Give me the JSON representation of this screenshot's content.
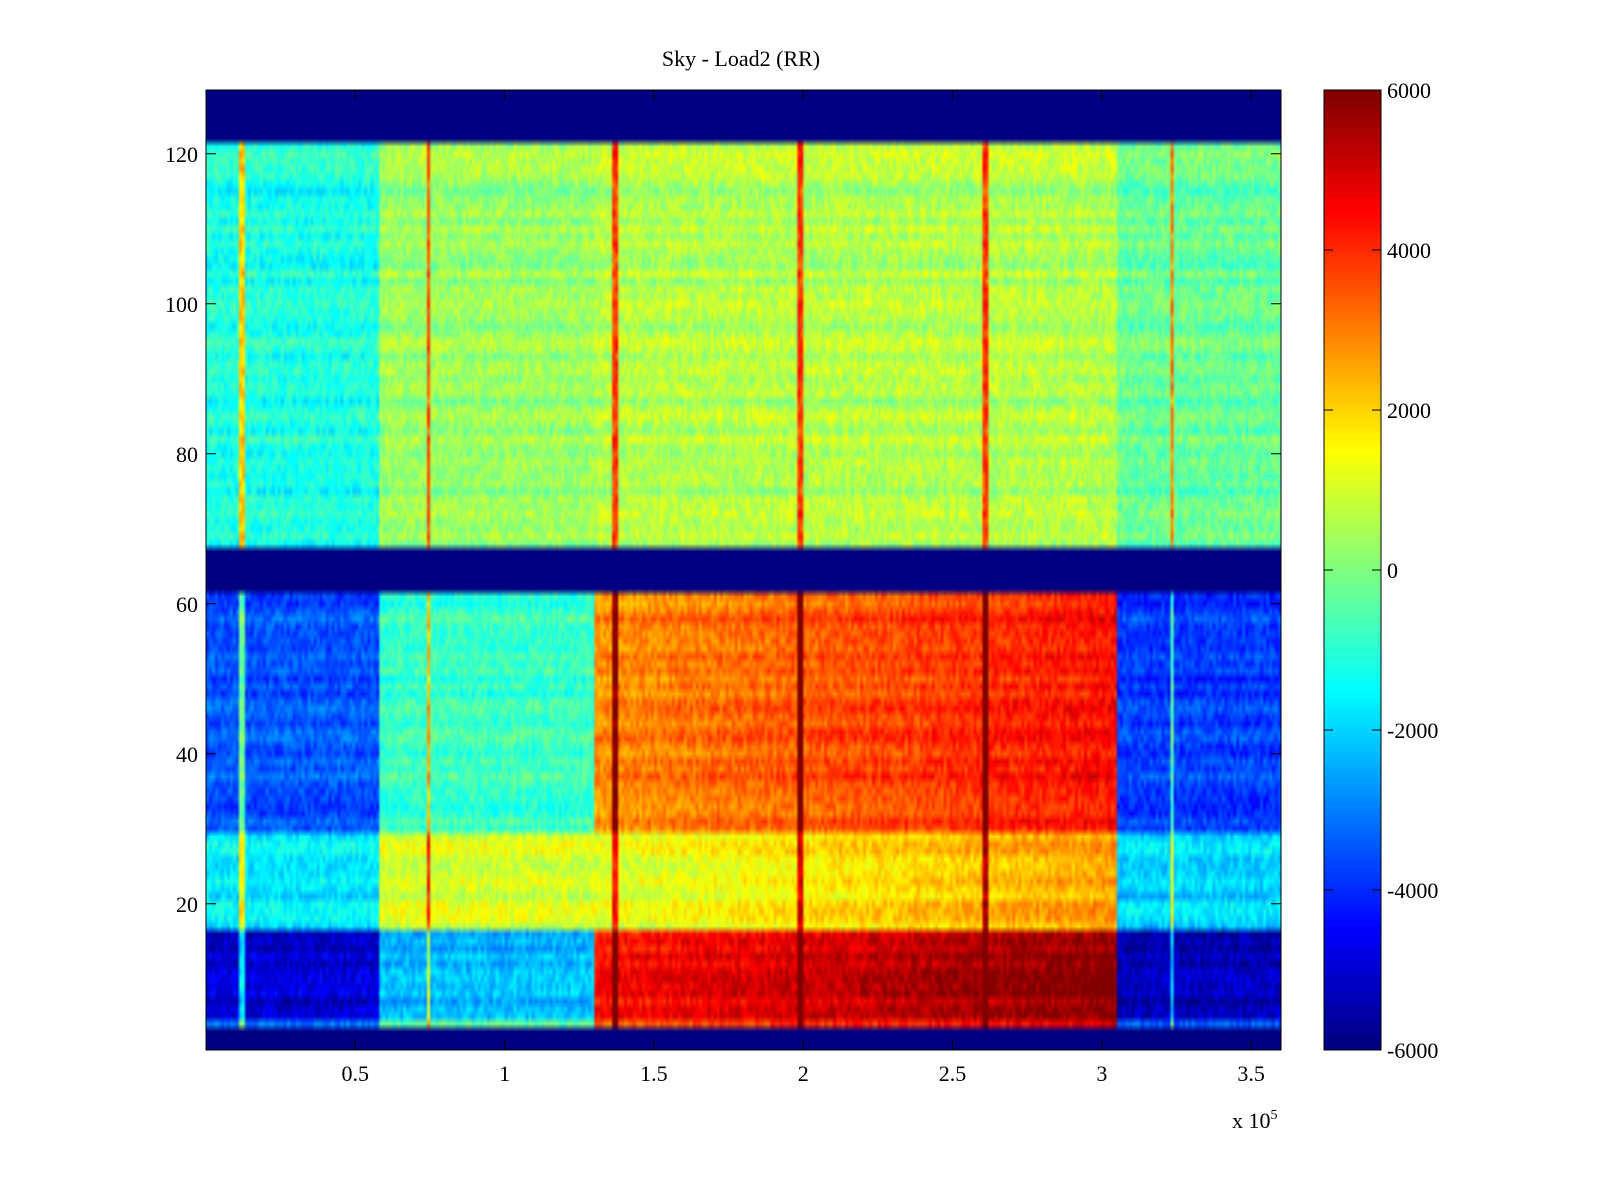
{
  "chart_data": {
    "type": "heatmap",
    "title": "Sky - Load2 (RR)",
    "xlabel": "",
    "ylabel": "",
    "x_multiplier_label": "x 10",
    "x_multiplier_exponent": "5",
    "xlim": [
      0,
      3.6
    ],
    "ylim": [
      0.5,
      128.5
    ],
    "x_ticks": [
      0.5,
      1,
      1.5,
      2,
      2.5,
      3,
      3.5
    ],
    "x_tick_labels": [
      "0.5",
      "1",
      "1.5",
      "2",
      "2.5",
      "3",
      "3.5"
    ],
    "y_ticks": [
      20,
      40,
      60,
      80,
      100,
      120
    ],
    "y_tick_labels": [
      "20",
      "40",
      "60",
      "80",
      "100",
      "120"
    ],
    "colorbar": {
      "colormap": "jet",
      "limits": [
        -6000,
        6000
      ],
      "ticks": [
        6000,
        4000,
        2000,
        0,
        -2000,
        -4000,
        -6000
      ],
      "tick_labels": [
        "6000",
        "4000",
        "2000",
        "0",
        "-2000",
        "-4000",
        "-6000"
      ]
    },
    "masked_rows": [
      [
        1,
        3
      ],
      [
        62,
        67
      ],
      [
        122,
        128
      ]
    ],
    "masked_value": -6000,
    "spike_columns_x": [
      0.12,
      0.745,
      1.37,
      1.99,
      2.61,
      3.235
    ],
    "segments": [
      {
        "x_range": [
          0,
          0.58
        ],
        "value_lower_band": -3500,
        "value_upper_band": -1200
      },
      {
        "x_range": [
          0.58,
          1.3
        ],
        "value_lower_band": -800,
        "value_upper_band": 300
      },
      {
        "x_range": [
          1.3,
          3.05
        ],
        "value_lower_band": 2800,
        "value_upper_band": 600
      },
      {
        "x_range": [
          3.05,
          3.6
        ],
        "value_lower_band": -3800,
        "value_upper_band": -300
      }
    ]
  }
}
